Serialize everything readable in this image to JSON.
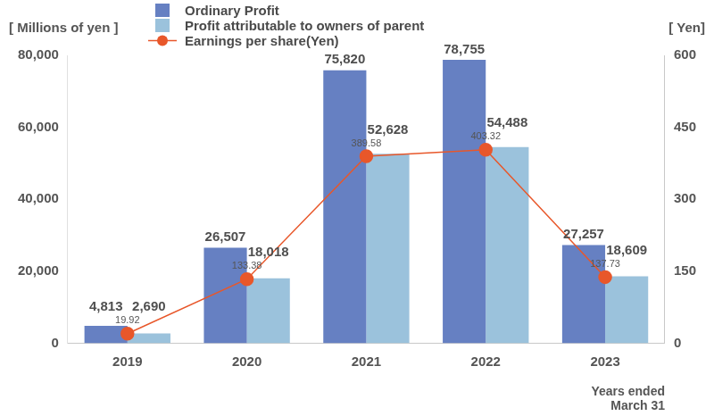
{
  "chart_data": {
    "type": "bar",
    "categories": [
      "2019",
      "2020",
      "2021",
      "2022",
      "2023"
    ],
    "series": [
      {
        "name": "Ordinary Profit",
        "color": "#6680c2",
        "values": [
          4813,
          26507,
          75820,
          78755,
          27257
        ],
        "value_labels": [
          "4,813",
          "26,507",
          "75,820",
          "78,755",
          "27,257"
        ]
      },
      {
        "name": "Profit attributable to owners of parent",
        "color": "#9bc2dc",
        "values": [
          2690,
          18018,
          52628,
          54488,
          18609
        ],
        "value_labels": [
          "2,690",
          "18,018",
          "52,628",
          "54,488",
          "18,609"
        ]
      },
      {
        "name": "Earnings per share(Yen)",
        "color": "#e8572a",
        "type": "line",
        "marker": "circle",
        "axis": "y2",
        "values": [
          19.92,
          133.38,
          389.58,
          403.32,
          137.73
        ]
      }
    ],
    "y_label": "[ Millions of yen ]",
    "y2_label": "[ Yen]",
    "x_label": [
      "Years ended",
      "March 31"
    ],
    "ylim": [
      0,
      80000
    ],
    "yticks": [
      0,
      {
        "value": 20000,
        "label": "20,000"
      },
      {
        "value": 40000,
        "label": "40,000"
      },
      {
        "value": 60000,
        "label": "60,000"
      },
      {
        "value": 80000,
        "label": "80,000"
      }
    ],
    "y2lim": [
      0,
      600
    ],
    "y2ticks": [
      0,
      150,
      300,
      450,
      600
    ],
    "grid": false,
    "legend": "top",
    "data_labels": true
  }
}
